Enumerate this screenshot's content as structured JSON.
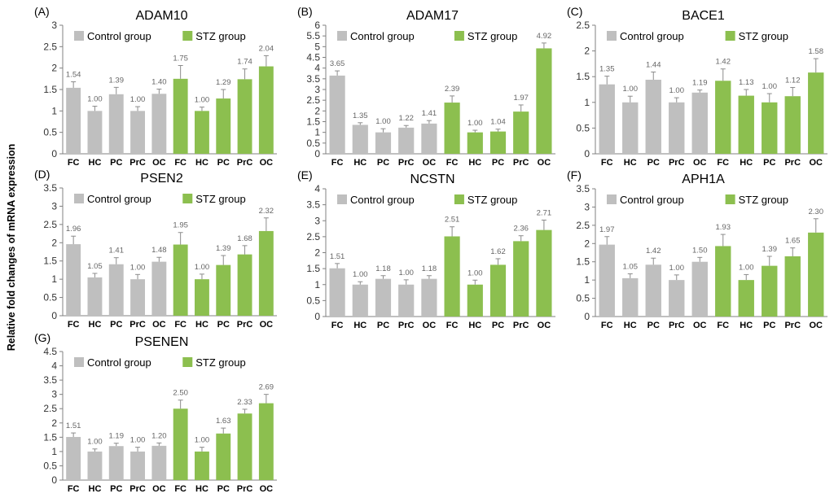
{
  "figure": {
    "shared_ylabel": "Relative fold changes of mRNA expression",
    "colors": {
      "control": "#bfbfbf",
      "stz": "#8cbf4f",
      "error_bar": "#8c8c8c",
      "axis": "#808080"
    }
  },
  "chart_data": [
    {
      "type": "bar",
      "panel": "(A)",
      "title": "ADAM10",
      "categories": [
        "FC",
        "HC",
        "PC",
        "PrC",
        "OC",
        "FC",
        "HC",
        "PC",
        "PrC",
        "OC"
      ],
      "series": [
        {
          "name": "Control group",
          "values": [
            1.54,
            1.0,
            1.39,
            1.0,
            1.4,
            null,
            null,
            null,
            null,
            null
          ]
        },
        {
          "name": "STZ group",
          "values": [
            null,
            null,
            null,
            null,
            null,
            1.75,
            1.0,
            1.29,
            1.74,
            2.04
          ]
        }
      ],
      "value_labels": [
        "1.54",
        "1.00",
        "1.39",
        "1.00",
        "1.40",
        "1.75",
        "1.00",
        "1.29",
        "1.74",
        "2.04"
      ],
      "error_upper": [
        1.68,
        1.11,
        1.55,
        1.1,
        1.51,
        2.06,
        1.09,
        1.5,
        1.98,
        2.29
      ],
      "ylim": [
        0,
        3
      ],
      "yticks": [
        "0",
        "0.5",
        "1",
        "1.5",
        "2",
        "2.5",
        "3"
      ],
      "legend": [
        "Control group",
        "STZ group"
      ],
      "legend_position": "top",
      "grid": false
    },
    {
      "type": "bar",
      "panel": "(B)",
      "title": "ADAM17",
      "categories": [
        "FC",
        "HC",
        "PC",
        "PrC",
        "OC",
        "FC",
        "HC",
        "PC",
        "PrC",
        "OC"
      ],
      "series": [
        {
          "name": "Control group",
          "values": [
            3.65,
            1.35,
            1.0,
            1.22,
            1.41,
            null,
            null,
            null,
            null,
            null
          ]
        },
        {
          "name": "STZ group",
          "values": [
            null,
            null,
            null,
            null,
            null,
            2.39,
            1.0,
            1.04,
            1.97,
            4.92
          ]
        }
      ],
      "value_labels": [
        "3.65",
        "1.35",
        "1.00",
        "1.22",
        "1.41",
        "2.39",
        "1.00",
        "1.04",
        "1.97",
        "4.92"
      ],
      "error_upper": [
        3.87,
        1.45,
        1.17,
        1.32,
        1.55,
        2.7,
        1.1,
        1.15,
        2.28,
        5.17
      ],
      "ylim": [
        0,
        6
      ],
      "yticks": [
        "0",
        "0.5",
        "1",
        "1.5",
        "2",
        "2.5",
        "3",
        "3.5",
        "4",
        "4.5",
        "5",
        "5.5",
        "6"
      ],
      "legend": [
        "Control group",
        "STZ group"
      ],
      "legend_position": "top",
      "grid": false
    },
    {
      "type": "bar",
      "panel": "(C)",
      "title": "BACE1",
      "categories": [
        "FC",
        "HC",
        "PC",
        "PrC",
        "OC",
        "FC",
        "HC",
        "PC",
        "PrC",
        "OC"
      ],
      "series": [
        {
          "name": "Control group",
          "values": [
            1.35,
            1.0,
            1.44,
            1.0,
            1.19,
            null,
            null,
            null,
            null,
            null
          ]
        },
        {
          "name": "STZ group",
          "values": [
            null,
            null,
            null,
            null,
            null,
            1.42,
            1.13,
            1.0,
            1.12,
            1.58
          ]
        }
      ],
      "value_labels": [
        "1.35",
        "1.00",
        "1.44",
        "1.00",
        "1.19",
        "1.42",
        "1.13",
        "1.00",
        "1.12",
        "1.58"
      ],
      "error_upper": [
        1.51,
        1.12,
        1.59,
        1.09,
        1.24,
        1.65,
        1.25,
        1.17,
        1.29,
        1.85
      ],
      "ylim": [
        0,
        2.5
      ],
      "yticks": [
        "0",
        "0.5",
        "1",
        "1.5",
        "2",
        "2.5"
      ],
      "legend": [
        "Control group",
        "STZ group"
      ],
      "legend_position": "top",
      "grid": false
    },
    {
      "type": "bar",
      "panel": "(D)",
      "title": "PSEN2",
      "categories": [
        "FC",
        "HC",
        "PC",
        "PrC",
        "OC",
        "FC",
        "HC",
        "PC",
        "PrC",
        "OC"
      ],
      "series": [
        {
          "name": "Control group",
          "values": [
            1.96,
            1.05,
            1.41,
            1.0,
            1.48,
            null,
            null,
            null,
            null,
            null
          ]
        },
        {
          "name": "STZ group",
          "values": [
            null,
            null,
            null,
            null,
            null,
            1.95,
            1.0,
            1.39,
            1.68,
            2.32
          ]
        }
      ],
      "value_labels": [
        "1.96",
        "1.05",
        "1.41",
        "1.00",
        "1.48",
        "1.95",
        "1.00",
        "1.39",
        "1.68",
        "2.32"
      ],
      "error_upper": [
        2.18,
        1.16,
        1.59,
        1.13,
        1.6,
        2.28,
        1.14,
        1.65,
        1.92,
        2.68
      ],
      "ylim": [
        0,
        3.5
      ],
      "yticks": [
        "0",
        "0.5",
        "1",
        "1.5",
        "2",
        "2.5",
        "3",
        "3.5"
      ],
      "legend": [
        "Control group",
        "STZ group"
      ],
      "legend_position": "top",
      "grid": false
    },
    {
      "type": "bar",
      "panel": "(E)",
      "title": "NCSTN",
      "categories": [
        "FC",
        "HC",
        "PC",
        "PrC",
        "OC",
        "FC",
        "HC",
        "PC",
        "PrC",
        "OC"
      ],
      "series": [
        {
          "name": "Control group",
          "values": [
            1.51,
            1.0,
            1.18,
            1.0,
            1.18,
            null,
            null,
            null,
            null,
            null
          ]
        },
        {
          "name": "STZ group",
          "values": [
            null,
            null,
            null,
            null,
            null,
            2.51,
            1.0,
            1.62,
            2.36,
            2.71
          ]
        }
      ],
      "value_labels": [
        "1.51",
        "1.00",
        "1.18",
        "1.00",
        "1.18",
        "2.51",
        "1.00",
        "1.62",
        "2.36",
        "2.71"
      ],
      "error_upper": [
        1.66,
        1.09,
        1.28,
        1.15,
        1.28,
        2.81,
        1.14,
        1.81,
        2.53,
        3.02
      ],
      "ylim": [
        0,
        4
      ],
      "yticks": [
        "0",
        "0.5",
        "1",
        "1.5",
        "2",
        "2.5",
        "3",
        "3.5",
        "4"
      ],
      "legend": [
        "Control group",
        "STZ group"
      ],
      "legend_position": "top",
      "grid": false
    },
    {
      "type": "bar",
      "panel": "(F)",
      "title": "APH1A",
      "categories": [
        "FC",
        "HC",
        "PC",
        "PrC",
        "OC",
        "FC",
        "HC",
        "PC",
        "PrC",
        "OC"
      ],
      "series": [
        {
          "name": "Control group",
          "values": [
            1.97,
            1.05,
            1.42,
            1.0,
            1.5,
            null,
            null,
            null,
            null,
            null
          ]
        },
        {
          "name": "STZ group",
          "values": [
            null,
            null,
            null,
            null,
            null,
            1.93,
            1.0,
            1.39,
            1.65,
            2.3
          ]
        }
      ],
      "value_labels": [
        "1.97",
        "1.05",
        "1.42",
        "1.00",
        "1.50",
        "1.93",
        "1.00",
        "1.39",
        "1.65",
        "2.30"
      ],
      "error_upper": [
        2.19,
        1.17,
        1.6,
        1.14,
        1.62,
        2.25,
        1.15,
        1.65,
        1.88,
        2.68
      ],
      "ylim": [
        0,
        3.5
      ],
      "yticks": [
        "0",
        "0.5",
        "1",
        "1.5",
        "2",
        "2.5",
        "3",
        "3.5"
      ],
      "legend": [
        "Control group",
        "STZ group"
      ],
      "legend_position": "top",
      "grid": false
    },
    {
      "type": "bar",
      "panel": "(G)",
      "title": "PSENEN",
      "categories": [
        "FC",
        "HC",
        "PC",
        "PrC",
        "OC",
        "FC",
        "HC",
        "PC",
        "PrC",
        "OC"
      ],
      "series": [
        {
          "name": "Control group",
          "values": [
            1.51,
            1.0,
            1.19,
            1.0,
            1.2,
            null,
            null,
            null,
            null,
            null
          ]
        },
        {
          "name": "STZ group",
          "values": [
            null,
            null,
            null,
            null,
            null,
            2.5,
            1.0,
            1.63,
            2.33,
            2.69
          ]
        }
      ],
      "value_labels": [
        "1.51",
        "1.00",
        "1.19",
        "1.00",
        "1.20",
        "2.50",
        "1.00",
        "1.63",
        "2.33",
        "2.69"
      ],
      "error_upper": [
        1.65,
        1.09,
        1.29,
        1.15,
        1.3,
        2.8,
        1.15,
        1.82,
        2.48,
        3.0
      ],
      "ylim": [
        0,
        4.5
      ],
      "yticks": [
        "0",
        "0.5",
        "1",
        "1.5",
        "2",
        "2.5",
        "3",
        "3.5",
        "4",
        "4.5"
      ],
      "legend": [
        "Control group",
        "STZ group"
      ],
      "legend_position": "top",
      "grid": false
    }
  ]
}
